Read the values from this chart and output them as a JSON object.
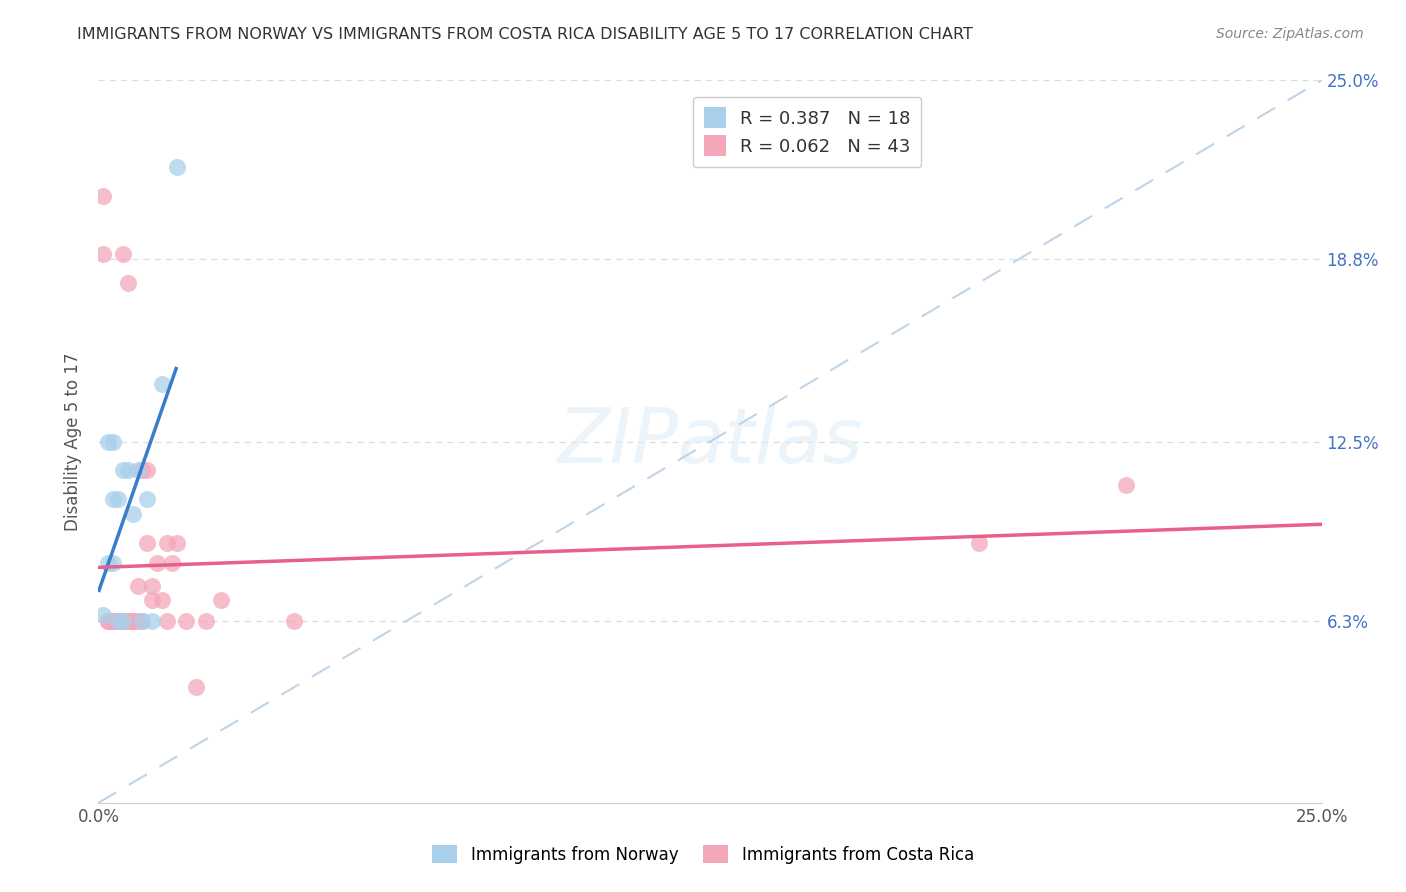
{
  "title": "IMMIGRANTS FROM NORWAY VS IMMIGRANTS FROM COSTA RICA DISABILITY AGE 5 TO 17 CORRELATION CHART",
  "source": "Source: ZipAtlas.com",
  "ylabel": "Disability Age 5 to 17",
  "xlim": [
    0,
    0.25
  ],
  "ylim": [
    0,
    0.25
  ],
  "norway_R": 0.387,
  "norway_N": 18,
  "costa_rica_R": 0.062,
  "costa_rica_N": 43,
  "norway_color": "#a8d0eb",
  "costa_rica_color": "#f4a7b9",
  "norway_line_color": "#3a7dc9",
  "costa_rica_line_color": "#e8608a",
  "diagonal_color": "#c0d4e8",
  "background_color": "#ffffff",
  "grid_color": "#dddddd",
  "right_axis_color": "#4472c4",
  "norway_x": [
    0.001,
    0.002,
    0.002,
    0.003,
    0.003,
    0.003,
    0.004,
    0.004,
    0.005,
    0.005,
    0.006,
    0.007,
    0.008,
    0.009,
    0.01,
    0.011,
    0.013,
    0.016
  ],
  "norway_y": [
    0.065,
    0.083,
    0.125,
    0.083,
    0.105,
    0.125,
    0.063,
    0.105,
    0.063,
    0.115,
    0.115,
    0.1,
    0.115,
    0.063,
    0.105,
    0.063,
    0.145,
    0.22
  ],
  "costa_rica_x": [
    0.001,
    0.001,
    0.002,
    0.002,
    0.003,
    0.003,
    0.003,
    0.003,
    0.004,
    0.004,
    0.004,
    0.004,
    0.004,
    0.005,
    0.005,
    0.005,
    0.006,
    0.006,
    0.006,
    0.007,
    0.007,
    0.007,
    0.008,
    0.008,
    0.009,
    0.009,
    0.01,
    0.01,
    0.011,
    0.011,
    0.012,
    0.013,
    0.014,
    0.014,
    0.015,
    0.016,
    0.018,
    0.02,
    0.022,
    0.025,
    0.04,
    0.18,
    0.21
  ],
  "costa_rica_y": [
    0.21,
    0.19,
    0.063,
    0.063,
    0.063,
    0.063,
    0.063,
    0.063,
    0.063,
    0.063,
    0.063,
    0.063,
    0.063,
    0.063,
    0.063,
    0.19,
    0.18,
    0.063,
    0.063,
    0.063,
    0.063,
    0.063,
    0.063,
    0.075,
    0.063,
    0.115,
    0.115,
    0.09,
    0.07,
    0.075,
    0.083,
    0.07,
    0.063,
    0.09,
    0.083,
    0.09,
    0.063,
    0.04,
    0.063,
    0.07,
    0.063,
    0.09,
    0.11
  ],
  "norway_line_x0": 0.0,
  "norway_line_y0": 0.078,
  "norway_line_x1": 0.016,
  "norway_line_y1": 0.155,
  "costa_rica_line_x0": 0.0,
  "costa_rica_line_y0": 0.082,
  "costa_rica_line_x1": 0.25,
  "costa_rica_line_y1": 0.113,
  "legend_norway_label": "Immigrants from Norway",
  "legend_costa_rica_label": "Immigrants from Costa Rica",
  "ytick_right_labels": [
    "6.3%",
    "12.5%",
    "18.8%",
    "25.0%"
  ],
  "ytick_right_values": [
    0.063,
    0.125,
    0.188,
    0.25
  ],
  "grid_yvals": [
    0.063,
    0.125,
    0.188,
    0.25
  ]
}
